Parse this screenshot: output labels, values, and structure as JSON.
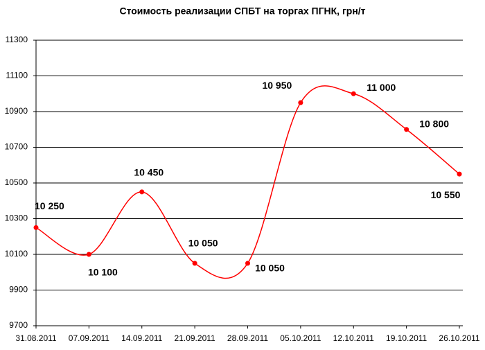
{
  "chart_data": {
    "type": "line",
    "title": "Стоимость реализации СПБТ на торгах ПГНК, грн/т",
    "categories": [
      "31.08.2011",
      "07.09.2011",
      "14.09.2011",
      "21.09.2011",
      "28.09.2011",
      "05.10.2011",
      "12.10.2011",
      "19.10.2011",
      "26.10.2011"
    ],
    "series": [
      {
        "color": "#ff0000",
        "values": [
          10250,
          10100,
          10450,
          10050,
          10050,
          10950,
          11000,
          10800,
          10550
        ],
        "value_labels": [
          "10 250",
          "10 100",
          "10 450",
          "10 050",
          "10 050",
          "10 950",
          "11 000",
          "10 800",
          "10 550"
        ]
      }
    ],
    "ylim": [
      9700,
      11300
    ],
    "yticks": [
      9700,
      9900,
      10100,
      10300,
      10500,
      10700,
      10900,
      11100,
      11300
    ],
    "grid": true,
    "smooth": true
  }
}
